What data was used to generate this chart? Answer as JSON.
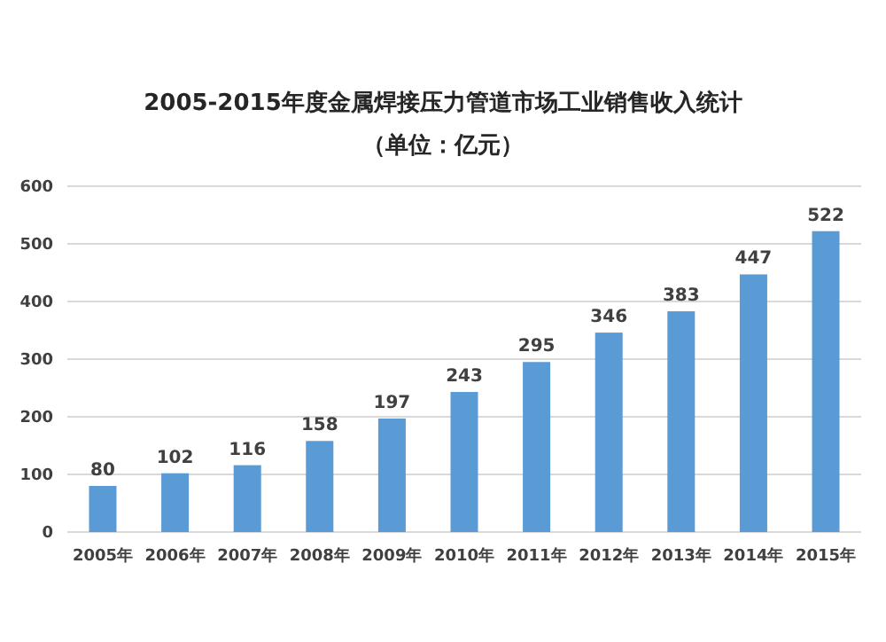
{
  "chart_data": {
    "type": "bar",
    "title": "2005-2015年度金属焊接压力管道市场工业销售收入统计",
    "subtitle": "（单位：亿元）",
    "categories": [
      "2005年",
      "2006年",
      "2007年",
      "2008年",
      "2009年",
      "2010年",
      "2011年",
      "2012年",
      "2013年",
      "2014年",
      "2015年"
    ],
    "values": [
      80,
      102,
      116,
      158,
      197,
      243,
      295,
      346,
      383,
      447,
      522
    ],
    "color": "#5b9bd5",
    "ylim": [
      0,
      600
    ],
    "yticks": [
      0,
      100,
      200,
      300,
      400,
      500,
      600
    ],
    "grid": "y",
    "data_labels": true
  }
}
